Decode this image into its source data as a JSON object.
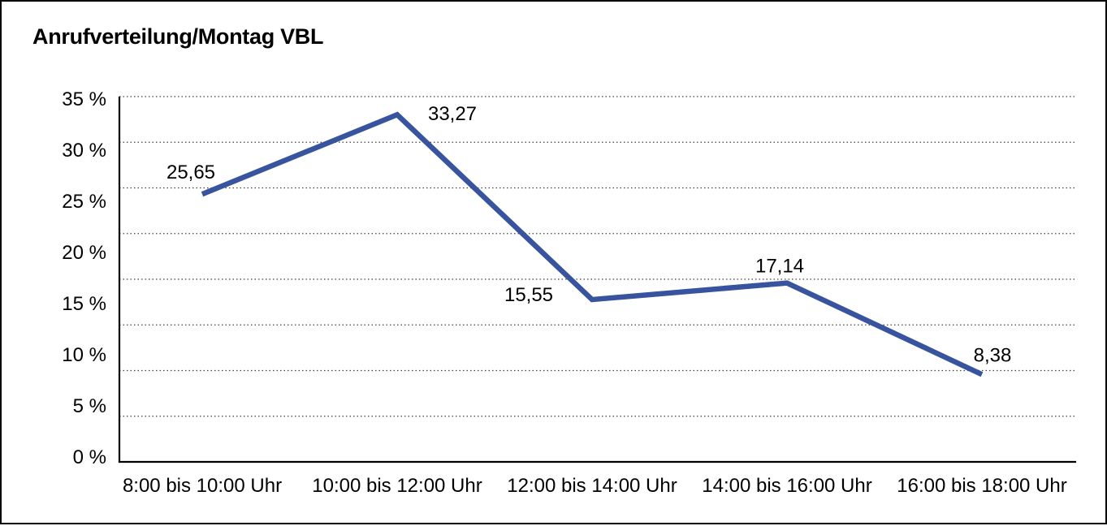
{
  "title": "Anrufverteilung/Montag VBL",
  "colors": {
    "series_line": "#38549F",
    "axis": "#000000",
    "gridline": "#404040",
    "text": "#000000",
    "background": "#ffffff",
    "frame_border": "#000000"
  },
  "chart_data": {
    "type": "line",
    "title": "Anrufverteilung/Montag VBL",
    "categories": [
      "8:00 bis 10:00 Uhr",
      "10:00 bis 12:00 Uhr",
      "12:00 bis 14:00 Uhr",
      "14:00 bis 16:00 Uhr",
      "16:00 bis 18:00 Uhr"
    ],
    "values": [
      25.65,
      33.27,
      15.55,
      17.14,
      8.38
    ],
    "data_labels": [
      "25,65",
      "33,27",
      "15,55",
      "17,14",
      "8,38"
    ],
    "y_ticks": [
      {
        "value": 35,
        "label": "35 %"
      },
      {
        "value": 30,
        "label": "30 %"
      },
      {
        "value": 25,
        "label": "25 %"
      },
      {
        "value": 20,
        "label": "20 %"
      },
      {
        "value": 15,
        "label": "15 %"
      },
      {
        "value": 10,
        "label": "10 %"
      },
      {
        "value": 5,
        "label": "5 %"
      },
      {
        "value": 0,
        "label": "0 %"
      }
    ],
    "ylim": [
      0,
      35
    ],
    "xlabel": "",
    "ylabel": "",
    "grid": "horizontal dotted",
    "legend_position": "none",
    "markers": "none"
  }
}
